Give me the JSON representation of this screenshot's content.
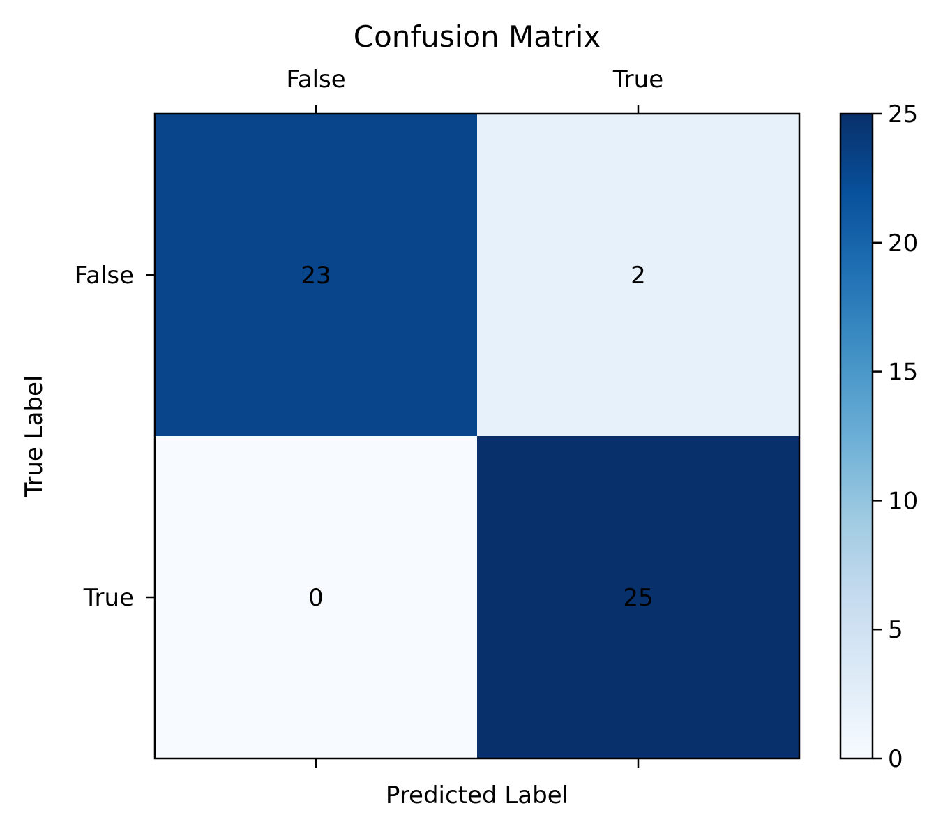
{
  "chart_data": {
    "type": "heatmap",
    "title": "Confusion Matrix",
    "xlabel": "Predicted Label",
    "ylabel": "True Label",
    "x_categories": [
      "False",
      "True"
    ],
    "y_categories": [
      "False",
      "True"
    ],
    "values": [
      [
        23,
        2
      ],
      [
        0,
        25
      ]
    ],
    "colormap": "Blues",
    "colorbar": {
      "range": [
        0,
        25
      ],
      "ticks": [
        0,
        5,
        10,
        15,
        20,
        25
      ]
    },
    "grid": false,
    "x_tick_position": "top"
  }
}
